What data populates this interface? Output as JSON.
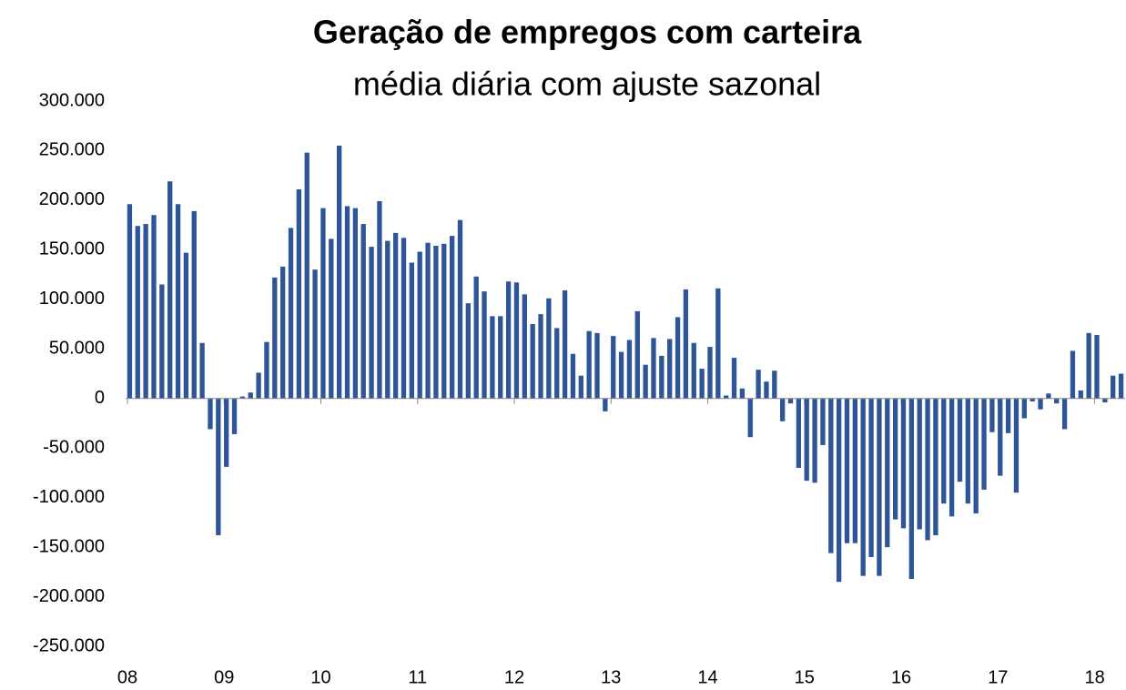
{
  "chart_data": {
    "type": "bar",
    "title": "Geração de empregos com carteira",
    "subtitle": "média diária com ajuste sazonal",
    "categories": [
      "08",
      null,
      null,
      null,
      null,
      null,
      null,
      null,
      null,
      null,
      null,
      null,
      "09",
      null,
      null,
      null,
      null,
      null,
      null,
      null,
      null,
      null,
      null,
      null,
      "10",
      null,
      null,
      null,
      null,
      null,
      null,
      null,
      null,
      null,
      null,
      null,
      "11",
      null,
      null,
      null,
      null,
      null,
      null,
      null,
      null,
      null,
      null,
      null,
      "12",
      null,
      null,
      null,
      null,
      null,
      null,
      null,
      null,
      null,
      null,
      null,
      "13",
      null,
      null,
      null,
      null,
      null,
      null,
      null,
      null,
      null,
      null,
      null,
      "14",
      null,
      null,
      null,
      null,
      null,
      null,
      null,
      null,
      null,
      null,
      null,
      "15",
      null,
      null,
      null,
      null,
      null,
      null,
      null,
      null,
      null,
      null,
      null,
      "16",
      null,
      null,
      null,
      null,
      null,
      null,
      null,
      null,
      null,
      null,
      null,
      "17",
      null,
      null,
      null,
      null,
      null,
      null,
      null,
      null,
      null,
      null,
      null,
      "18",
      null,
      null,
      null
    ],
    "values": [
      196000,
      174000,
      176000,
      185000,
      115000,
      219000,
      196000,
      147000,
      189000,
      56000,
      -31000,
      -138000,
      -69000,
      -36000,
      2000,
      6000,
      26000,
      57000,
      122000,
      133000,
      172000,
      211000,
      248000,
      130000,
      192000,
      161000,
      255000,
      194000,
      192000,
      176000,
      153000,
      199000,
      159000,
      167000,
      162000,
      137000,
      148000,
      157000,
      154000,
      156000,
      164000,
      180000,
      96000,
      123000,
      108000,
      83000,
      83000,
      118000,
      117000,
      105000,
      75000,
      85000,
      101000,
      71000,
      109000,
      45000,
      23000,
      68000,
      66000,
      -13000,
      63000,
      47000,
      59000,
      88000,
      34000,
      61000,
      43000,
      60000,
      82000,
      110000,
      56000,
      30000,
      52000,
      111000,
      3000,
      41000,
      10000,
      -39000,
      29000,
      17000,
      28000,
      -23000,
      -5000,
      -70000,
      -83000,
      -85000,
      -47000,
      -156000,
      -185000,
      -146000,
      -146000,
      -179000,
      -160000,
      -179000,
      -150000,
      -122000,
      -131000,
      -182000,
      -132000,
      -143000,
      -138000,
      -106000,
      -119000,
      -84000,
      -106000,
      -116000,
      -92000,
      -34000,
      -78000,
      -35000,
      -95000,
      -20000,
      -3000,
      -11000,
      5000,
      -5000,
      -31000,
      48000,
      8000,
      66000,
      64000,
      -4000,
      23000,
      25000
    ],
    "color": "#2e5597",
    "ylim": [
      -250000,
      300000
    ],
    "yticks": [
      {
        "value": -250000,
        "label": "-250.000"
      },
      {
        "value": -200000,
        "label": "-200.000"
      },
      {
        "value": -150000,
        "label": "-150.000"
      },
      {
        "value": -100000,
        "label": "-100.000"
      },
      {
        "value": -50000,
        "label": "-50.000"
      },
      0,
      {
        "value": 50000,
        "label": "50.000"
      },
      {
        "value": 100000,
        "label": "100.000"
      },
      {
        "value": 150000,
        "label": "150.000"
      },
      {
        "value": 200000,
        "label": "200.000"
      },
      {
        "value": 250000,
        "label": "250.000"
      },
      {
        "value": 300000,
        "label": "300.000"
      }
    ],
    "grid": false
  }
}
